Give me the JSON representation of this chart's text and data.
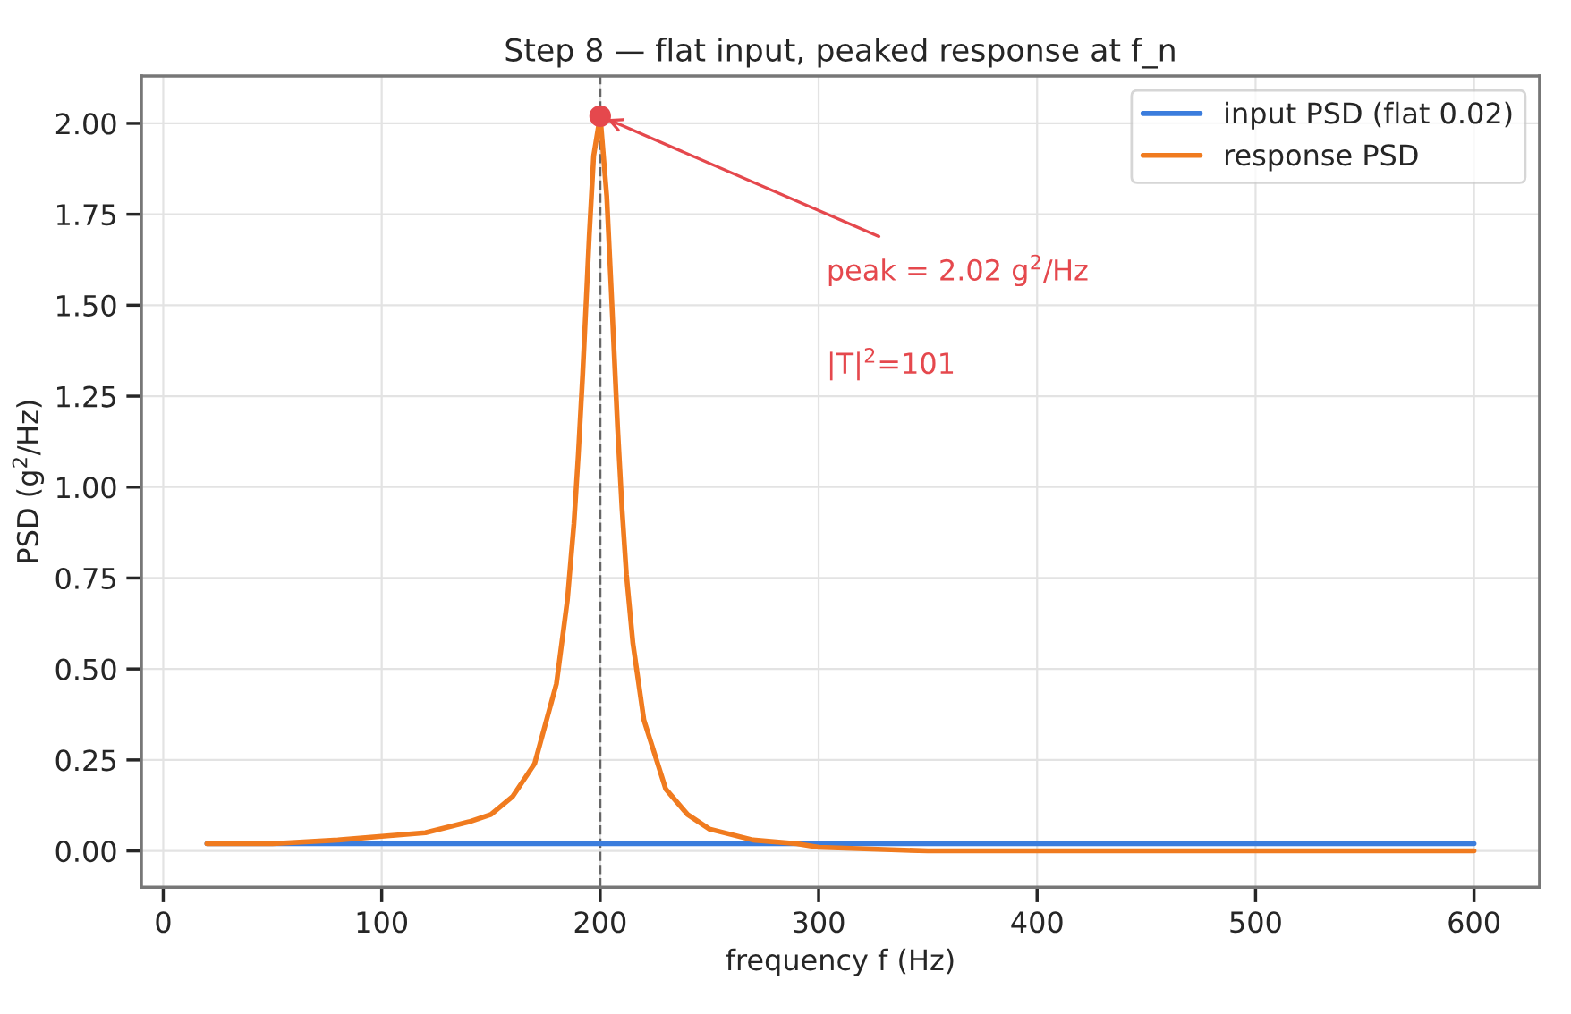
{
  "chart_data": {
    "type": "line",
    "title": "Step 8 — flat input, peaked response at f_n",
    "xlabel": "frequency f (Hz)",
    "ylabel": "PSD (g$^{2}$/Hz)",
    "series": [
      {
        "name": "input PSD (flat 0.02)",
        "color": "#3b7ddd",
        "x": [
          20,
          600
        ],
        "values": [
          0.02,
          0.02
        ]
      },
      {
        "name": "response PSD",
        "color": "#f07b1f",
        "x": [
          20,
          50,
          80,
          100,
          120,
          140,
          150,
          160,
          170,
          180,
          185,
          188,
          190,
          192,
          195,
          197,
          200,
          203,
          205,
          208,
          210,
          212,
          215,
          220,
          230,
          240,
          250,
          270,
          290,
          300,
          350,
          400,
          500,
          600
        ],
        "values": [
          0.02,
          0.02,
          0.03,
          0.04,
          0.05,
          0.08,
          0.1,
          0.15,
          0.24,
          0.46,
          0.69,
          0.9,
          1.09,
          1.31,
          1.69,
          1.91,
          2.02,
          1.8,
          1.55,
          1.16,
          0.94,
          0.76,
          0.57,
          0.36,
          0.17,
          0.1,
          0.06,
          0.03,
          0.02,
          0.01,
          0.0,
          0.0,
          0.0,
          0.0
        ]
      },
      {
        "type": "scatter",
        "color": "#e5484d",
        "x": [
          200
        ],
        "values": [
          2.02
        ]
      }
    ],
    "ref_lines": [
      {
        "axis": "x",
        "value": 200,
        "color": "#666666",
        "line_style": "dashed"
      }
    ],
    "annotations": [
      {
        "text": "peak = 2.02 g$^{2}$/Hz",
        "x": 200,
        "y": 2.02
      },
      "|T|$^{2}$=101"
    ],
    "xlim": [
      -10,
      630
    ],
    "ylim": [
      -0.1,
      2.13
    ],
    "xticks": [
      0,
      100,
      200,
      300,
      400,
      500,
      600
    ],
    "yticks": [
      {
        "value": 0,
        "label": "0.00"
      },
      {
        "value": 0.25,
        "label": "0.25"
      },
      {
        "value": 0.5,
        "label": "0.50"
      },
      {
        "value": 0.75,
        "label": "0.75"
      },
      {
        "value": 1,
        "label": "1.00"
      },
      {
        "value": 1.25,
        "label": "1.25"
      },
      {
        "value": 1.5,
        "label": "1.50"
      },
      {
        "value": 1.75,
        "label": "1.75"
      },
      {
        "value": 2,
        "label": "2.00"
      }
    ],
    "grid": true,
    "legend": "top right"
  }
}
